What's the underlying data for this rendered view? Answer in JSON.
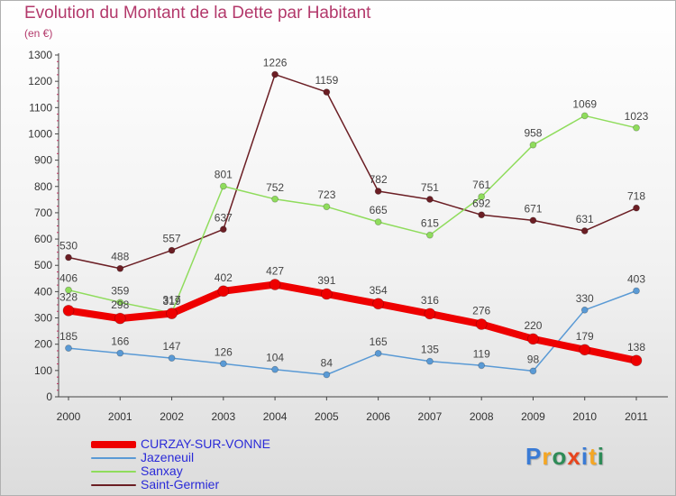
{
  "title": "Evolution du Montant de la Dette par Habitant",
  "subtitle": "(en €)",
  "logo": {
    "text": "Proxiti",
    "colors": [
      "#3a7bd5",
      "#f5a623",
      "#2e8b57",
      "#e8451e",
      "#3a7bd5",
      "#f5a623",
      "#2e8b57"
    ]
  },
  "chart_data": {
    "type": "line",
    "x": [
      "2000",
      "2001",
      "2002",
      "2003",
      "2004",
      "2005",
      "2006",
      "2007",
      "2008",
      "2009",
      "2010",
      "2011"
    ],
    "ylim": [
      0,
      1300
    ],
    "yticks": [
      0,
      100,
      200,
      300,
      400,
      500,
      600,
      700,
      800,
      900,
      1000,
      1100,
      1200,
      1300
    ],
    "grid": false,
    "legend_position": "bottom-left",
    "series": [
      {
        "name": "Saint-Germier",
        "color": "#6b1e24",
        "values": [
          530,
          488,
          557,
          637,
          1226,
          1159,
          782,
          751,
          692,
          671,
          631,
          718
        ]
      },
      {
        "name": "Sanxay",
        "color": "#8fdc5c",
        "values": [
          406,
          359,
          319,
          801,
          752,
          723,
          665,
          615,
          761,
          958,
          1069,
          1023
        ]
      },
      {
        "name": "Jazeneuil",
        "color": "#5a9ad5",
        "values": [
          185,
          166,
          147,
          126,
          104,
          84,
          165,
          135,
          119,
          98,
          330,
          403
        ]
      },
      {
        "name": "CURZAY-SUR-VONNE",
        "color": "#ee0000",
        "values": [
          328,
          298,
          317,
          402,
          427,
          391,
          354,
          316,
          276,
          220,
          179,
          138
        ]
      }
    ],
    "legend_order": [
      "CURZAY-SUR-VONNE",
      "Jazeneuil",
      "Sanxay",
      "Saint-Germier"
    ]
  }
}
